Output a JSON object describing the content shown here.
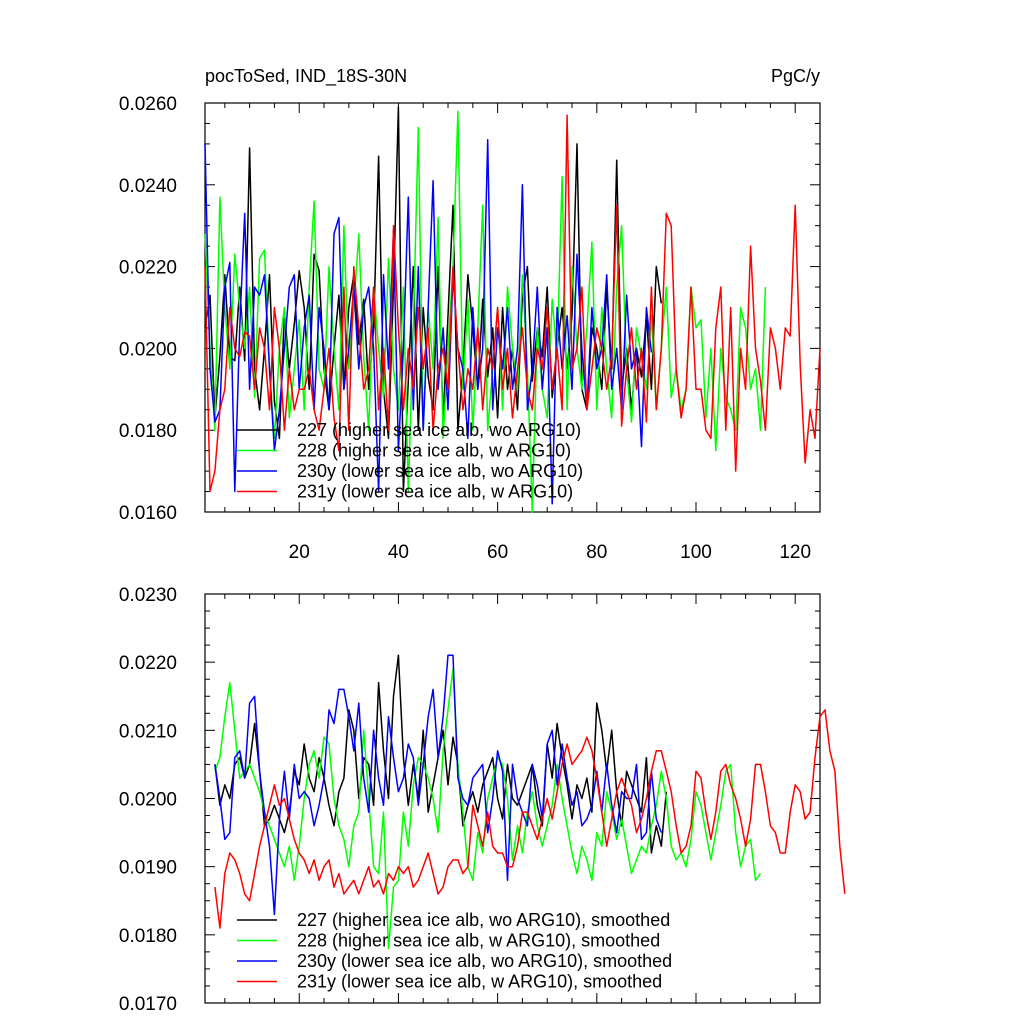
{
  "chart_data": [
    {
      "type": "line",
      "title_left": "pocToSed, IND_18S-30N",
      "title_right": "PgC/y",
      "xlim": [
        1,
        125
      ],
      "ylim": [
        0.016,
        0.026
      ],
      "x_ticks": [
        20,
        40,
        60,
        80,
        100,
        120
      ],
      "x_tick_labels": [
        "20",
        "40",
        "60",
        "80",
        "100",
        "120"
      ],
      "y_ticks": [
        0.016,
        0.018,
        0.02,
        0.022,
        0.024,
        0.026
      ],
      "y_tick_labels": [
        "0.0160",
        "0.0180",
        "0.0200",
        "0.0220",
        "0.0240",
        "0.0260"
      ],
      "legend_position": "bottom-left",
      "grid": false,
      "series": [
        {
          "name": "227 (higher sea ice alb, wo ARG10)",
          "color": "#000000",
          "x_start": 1,
          "values": [
            0.0205,
            0.0213,
            0.0183,
            0.0198,
            0.0218,
            0.0198,
            0.0197,
            0.0215,
            0.0197,
            0.0249,
            0.0195,
            0.0185,
            0.02,
            0.0218,
            0.0187,
            0.0178,
            0.0209,
            0.0195,
            0.0206,
            0.0219,
            0.021,
            0.019,
            0.0223,
            0.0219,
            0.0195,
            0.0185,
            0.02,
            0.0213,
            0.019,
            0.021,
            0.0218,
            0.0201,
            0.0212,
            0.019,
            0.0205,
            0.0247,
            0.019,
            0.0178,
            0.0215,
            0.0259,
            0.0165,
            0.0192,
            0.022,
            0.018,
            0.021,
            0.0193,
            0.0185,
            0.022,
            0.0183,
            0.0208,
            0.0235,
            0.018,
            0.0195,
            0.0218,
            0.0205,
            0.019,
            0.0212,
            0.0193,
            0.0205,
            0.0183,
            0.021,
            0.019,
            0.02,
            0.0185,
            0.0213,
            0.022,
            0.0192,
            0.0205,
            0.0198,
            0.0215,
            0.0188,
            0.02,
            0.021,
            0.0195,
            0.0208,
            0.025,
            0.019,
            0.0185,
            0.0205,
            0.02,
            0.019,
            0.0215,
            0.0195,
            0.0246,
            0.019,
            0.02,
            0.0185,
            0.02,
            0.0193,
            0.0208,
            0.019,
            0.022,
            0.0211
          ]
        },
        {
          "name": "228 (higher sea ice alb, w ARG10)",
          "color": "#00ff00",
          "x_start": 1,
          "values": [
            0.0228,
            0.02,
            0.018,
            0.0237,
            0.021,
            0.0195,
            0.0223,
            0.021,
            0.02,
            0.0215,
            0.0188,
            0.0222,
            0.0224,
            0.0195,
            0.0178,
            0.02,
            0.021,
            0.0183,
            0.0195,
            0.0207,
            0.0185,
            0.0215,
            0.0236,
            0.0195,
            0.019,
            0.022,
            0.02,
            0.0185,
            0.023,
            0.0195,
            0.021,
            0.0228,
            0.0198,
            0.018,
            0.0215,
            0.02,
            0.0188,
            0.0222,
            0.0195,
            0.0185,
            0.0215,
            0.0165,
            0.0205,
            0.0254,
            0.018,
            0.021,
            0.0195,
            0.0232,
            0.0178,
            0.02,
            0.022,
            0.0258,
            0.019,
            0.0212,
            0.018,
            0.0205,
            0.0235,
            0.018,
            0.0195,
            0.021,
            0.0185,
            0.0215,
            0.02,
            0.019,
            0.0218,
            0.0195,
            0.016,
            0.0205,
            0.019,
            0.0183,
            0.0212,
            0.0198,
            0.0242,
            0.0185,
            0.022,
            0.02,
            0.019,
            0.0205,
            0.0226,
            0.0185,
            0.021,
            0.0195,
            0.0183,
            0.0215,
            0.023,
            0.0195,
            0.0182,
            0.0205,
            0.0198,
            0.019,
            0.0208,
            0.0185,
            0.02,
            0.0215,
            0.0188,
            0.0195,
            0.0185,
            0.019,
            0.0215,
            0.0205,
            0.0207,
            0.0183,
            0.02,
            0.0175,
            0.02,
            0.0188,
            0.0185,
            0.018,
            0.021,
            0.0205,
            0.019,
            0.0195,
            0.018,
            0.0215
          ]
        },
        {
          "name": "230y (lower sea ice alb, wo ARG10)",
          "color": "#0000ff",
          "x_start": 1,
          "values": [
            0.025,
            0.0195,
            0.0182,
            0.0185,
            0.0215,
            0.0221,
            0.0165,
            0.0205,
            0.0233,
            0.019,
            0.0215,
            0.0213,
            0.0218,
            0.0195,
            0.0175,
            0.0185,
            0.02,
            0.0215,
            0.0218,
            0.019,
            0.0205,
            0.0213,
            0.0185,
            0.021,
            0.02,
            0.0185,
            0.0228,
            0.0232,
            0.019,
            0.02,
            0.0215,
            0.0195,
            0.021,
            0.0215,
            0.02,
            0.0165,
            0.0218,
            0.0195,
            0.0229,
            0.0175,
            0.02,
            0.0237,
            0.0185,
            0.022,
            0.018,
            0.021,
            0.0241,
            0.019,
            0.0205,
            0.0185,
            0.0218,
            0.02,
            0.0195,
            0.0178,
            0.021,
            0.019,
            0.02,
            0.0251,
            0.0185,
            0.0205,
            0.0195,
            0.021,
            0.019,
            0.02,
            0.024,
            0.0185,
            0.0195,
            0.0215,
            0.019,
            0.0205,
            0.0162,
            0.021,
            0.0195,
            0.0208,
            0.019,
            0.0223,
            0.02,
            0.0185,
            0.021,
            0.0195,
            0.02,
            0.0218,
            0.019,
            0.02,
            0.0185,
            0.0213,
            0.0195,
            0.02,
            0.0176,
            0.021,
            0.0199
          ]
        },
        {
          "name": "231y (lower sea ice alb, w ARG10)",
          "color": "#ff0000",
          "x_start": 1,
          "values": [
            0.022,
            0.0165,
            0.017,
            0.0185,
            0.019,
            0.021,
            0.02,
            0.0198,
            0.0204,
            0.0203,
            0.019,
            0.0205,
            0.02,
            0.0185,
            0.021,
            0.02,
            0.018,
            0.0195,
            0.0185,
            0.019,
            0.019,
            0.0195,
            0.0185,
            0.018,
            0.019,
            0.02,
            0.0183,
            0.0175,
            0.0215,
            0.018,
            0.022,
            0.0205,
            0.019,
            0.0195,
            0.0215,
            0.0185,
            0.02,
            0.018,
            0.023,
            0.0205,
            0.0185,
            0.02,
            0.019,
            0.021,
            0.0195,
            0.0205,
            0.018,
            0.0195,
            0.02,
            0.019,
            0.022,
            0.02,
            0.0185,
            0.0195,
            0.019,
            0.0205,
            0.0185,
            0.02,
            0.0195,
            0.021,
            0.019,
            0.02,
            0.0183,
            0.0195,
            0.0205,
            0.019,
            0.0185,
            0.02,
            0.0195,
            0.021,
            0.019,
            0.02,
            0.0185,
            0.0257,
            0.0195,
            0.02,
            0.0215,
            0.0185,
            0.0195,
            0.0205,
            0.02,
            0.019,
            0.0198,
            0.0235,
            0.0181,
            0.0195,
            0.0205,
            0.019,
            0.02,
            0.0182,
            0.0215,
            0.0185,
            0.02,
            0.0233,
            0.023,
            0.0195,
            0.0183,
            0.019,
            0.0215,
            0.019,
            0.019,
            0.018,
            0.0178,
            0.0205,
            0.0215,
            0.018,
            0.021,
            0.017,
            0.02,
            0.019,
            0.0225,
            0.02,
            0.0192,
            0.018,
            0.0205,
            0.02,
            0.019,
            0.0205,
            0.0203,
            0.0235,
            0.0196,
            0.0172,
            0.0185,
            0.0178,
            0.02
          ]
        }
      ]
    },
    {
      "type": "line",
      "xlim": [
        1,
        125
      ],
      "ylim": [
        0.017,
        0.023
      ],
      "x_ticks": [
        20,
        40,
        60,
        80,
        100,
        120
      ],
      "y_ticks": [
        0.017,
        0.018,
        0.019,
        0.02,
        0.021,
        0.022,
        0.023
      ],
      "y_tick_labels": [
        "0.0170",
        "0.0180",
        "0.0190",
        "0.0200",
        "0.0210",
        "0.0220",
        "0.0230"
      ],
      "legend_position": "bottom-left",
      "grid": false,
      "series": [
        {
          "name": "227 (higher sea ice alb, wo ARG10), smoothed",
          "color": "#000000",
          "x_start": 3,
          "values": [
            0.0205,
            0.0199,
            0.0202,
            0.02,
            0.0205,
            0.0206,
            0.0203,
            0.0205,
            0.0211,
            0.0204,
            0.0196,
            0.0197,
            0.0199,
            0.0197,
            0.0195,
            0.0198,
            0.0204,
            0.0202,
            0.0208,
            0.0203,
            0.0201,
            0.0206,
            0.0203,
            0.0199,
            0.0196,
            0.0201,
            0.0203,
            0.0213,
            0.021,
            0.02,
            0.0206,
            0.0205,
            0.0199,
            0.0217,
            0.0207,
            0.02,
            0.0215,
            0.0221,
            0.0206,
            0.0199,
            0.0205,
            0.02,
            0.021,
            0.0198,
            0.0202,
            0.0206,
            0.021,
            0.0202,
            0.0209,
            0.0205,
            0.0196,
            0.0199,
            0.0201,
            0.0198,
            0.0202,
            0.0204,
            0.0206,
            0.02,
            0.0197,
            0.0205,
            0.02,
            0.0199,
            0.0201,
            0.0203,
            0.0205,
            0.0199,
            0.0196,
            0.0208,
            0.0203,
            0.0211,
            0.0206,
            0.0202,
            0.0197,
            0.0202,
            0.02,
            0.0203,
            0.0198,
            0.0214,
            0.021,
            0.0204,
            0.021,
            0.0201,
            0.0196,
            0.0204,
            0.0202,
            0.02,
            0.0198,
            0.0206,
            0.0192,
            0.0196,
            0.0193,
            0.0201
          ]
        },
        {
          "name": "228 (higher sea ice alb, w ARG10), smoothed",
          "color": "#00ff00",
          "x_start": 3,
          "values": [
            0.0204,
            0.0206,
            0.0212,
            0.0217,
            0.021,
            0.0203,
            0.0204,
            0.0205,
            0.0203,
            0.0201,
            0.0198,
            0.0196,
            0.0194,
            0.0192,
            0.019,
            0.0193,
            0.0188,
            0.0193,
            0.02,
            0.0205,
            0.0207,
            0.0203,
            0.0209,
            0.0208,
            0.02,
            0.0196,
            0.0194,
            0.019,
            0.0196,
            0.0198,
            0.021,
            0.02,
            0.019,
            0.0189,
            0.0198,
            0.0178,
            0.0187,
            0.0188,
            0.0198,
            0.0193,
            0.0202,
            0.0206,
            0.0205,
            0.0203,
            0.02,
            0.0195,
            0.0207,
            0.0213,
            0.0219,
            0.0205,
            0.0198,
            0.019,
            0.0188,
            0.0195,
            0.0192,
            0.02,
            0.0203,
            0.0206,
            0.0205,
            0.02,
            0.0191,
            0.0196,
            0.0192,
            0.0198,
            0.0201,
            0.0196,
            0.0193,
            0.0196,
            0.0199,
            0.0205,
            0.02,
            0.0196,
            0.0192,
            0.0189,
            0.0193,
            0.0191,
            0.0188,
            0.0195,
            0.0193,
            0.0201,
            0.0198,
            0.0194,
            0.0197,
            0.0193,
            0.0189,
            0.0191,
            0.0193,
            0.0192,
            0.0196,
            0.0199,
            0.0204,
            0.02,
            0.0193,
            0.0191,
            0.0192,
            0.019,
            0.0194,
            0.0201,
            0.0199,
            0.0195,
            0.0191,
            0.0195,
            0.0199,
            0.0204,
            0.0205,
            0.0195,
            0.019,
            0.0193,
            0.0194,
            0.0188,
            0.0189
          ]
        },
        {
          "name": "230y (lower sea ice alb, wo ARG10), smoothed",
          "color": "#0000ff",
          "x_start": 3,
          "values": [
            0.0205,
            0.02,
            0.0194,
            0.0195,
            0.0206,
            0.0207,
            0.0203,
            0.0214,
            0.0215,
            0.0204,
            0.0198,
            0.0193,
            0.0183,
            0.0197,
            0.0204,
            0.0197,
            0.0205,
            0.02,
            0.0201,
            0.02,
            0.0196,
            0.0199,
            0.0203,
            0.0213,
            0.0211,
            0.0216,
            0.0216,
            0.0212,
            0.0207,
            0.0214,
            0.0203,
            0.0198,
            0.021,
            0.0203,
            0.0199,
            0.0212,
            0.0206,
            0.0201,
            0.0203,
            0.0208,
            0.0206,
            0.0199,
            0.0205,
            0.0212,
            0.0216,
            0.0206,
            0.0212,
            0.0221,
            0.0221,
            0.0203,
            0.02,
            0.0199,
            0.0203,
            0.0204,
            0.0205,
            0.0195,
            0.02,
            0.0207,
            0.0204,
            0.0188,
            0.0205,
            0.02,
            0.0198,
            0.0196,
            0.0205,
            0.0202,
            0.0197,
            0.0208,
            0.021,
            0.0202,
            0.0208,
            0.0203,
            0.0199,
            0.0201,
            0.0196,
            0.0197,
            0.0199,
            0.0204,
            0.0198,
            0.0205,
            0.0199,
            0.0195,
            0.0201,
            0.02,
            0.02,
            0.0205,
            0.0194,
            0.0195,
            0.0204,
            0.0197,
            0.0195
          ]
        },
        {
          "name": "231y (lower sea ice alb, w ARG10), smoothed",
          "color": "#ff0000",
          "x_start": 3,
          "values": [
            0.0187,
            0.0181,
            0.0189,
            0.0192,
            0.0191,
            0.0189,
            0.0186,
            0.0185,
            0.0189,
            0.0193,
            0.0196,
            0.0199,
            0.0202,
            0.0199,
            0.02,
            0.0197,
            0.0194,
            0.0192,
            0.0191,
            0.0189,
            0.0191,
            0.0188,
            0.019,
            0.0191,
            0.0187,
            0.0189,
            0.0186,
            0.0187,
            0.0188,
            0.0186,
            0.0188,
            0.019,
            0.0187,
            0.0188,
            0.0186,
            0.0189,
            0.0188,
            0.019,
            0.0189,
            0.019,
            0.0187,
            0.0188,
            0.019,
            0.0192,
            0.0189,
            0.0186,
            0.0187,
            0.019,
            0.0191,
            0.0191,
            0.0189,
            0.019,
            0.0199,
            0.0196,
            0.0193,
            0.0198,
            0.0193,
            0.0192,
            0.0192,
            0.019,
            0.019,
            0.0193,
            0.0198,
            0.0198,
            0.0196,
            0.0194,
            0.0197,
            0.02,
            0.0197,
            0.0201,
            0.0205,
            0.0208,
            0.0205,
            0.0206,
            0.0207,
            0.0209,
            0.0207,
            0.0203,
            0.0198,
            0.0193,
            0.0197,
            0.0201,
            0.0203,
            0.0201,
            0.0199,
            0.0195,
            0.0197,
            0.02,
            0.0204,
            0.0207,
            0.0207,
            0.0204,
            0.0201,
            0.0196,
            0.0192,
            0.0193,
            0.0196,
            0.0204,
            0.0203,
            0.0198,
            0.0194,
            0.0198,
            0.0204,
            0.0205,
            0.0202,
            0.02,
            0.0197,
            0.0193,
            0.0197,
            0.0205,
            0.0205,
            0.0201,
            0.0196,
            0.0195,
            0.0192,
            0.0192,
            0.0198,
            0.0202,
            0.0201,
            0.0197,
            0.0198,
            0.0206,
            0.0212,
            0.0213,
            0.0207,
            0.0204,
            0.0193,
            0.0186
          ]
        }
      ]
    }
  ]
}
